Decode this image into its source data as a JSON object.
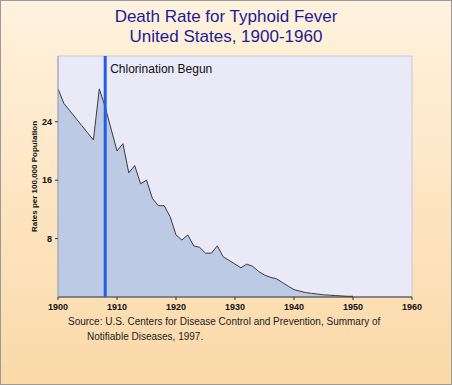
{
  "chart_data": {
    "type": "area",
    "title": "Death Rate for Typhoid Fever",
    "subtitle": "United States, 1900-1960",
    "y_label": "Rates per 100,000 Population",
    "source": [
      "Source: U.S. Centers for Disease Control and Prevention, Summary of",
      "Notifiable Diseases, 1997."
    ],
    "annotations": [
      {
        "x": 1908,
        "text": "Chlorination Begun"
      }
    ],
    "x": [
      1900,
      1901,
      1902,
      1903,
      1904,
      1905,
      1906,
      1907,
      1908,
      1909,
      1910,
      1911,
      1912,
      1913,
      1914,
      1915,
      1916,
      1917,
      1918,
      1919,
      1920,
      1921,
      1922,
      1923,
      1924,
      1925,
      1926,
      1927,
      1928,
      1929,
      1930,
      1931,
      1932,
      1933,
      1934,
      1935,
      1936,
      1937,
      1938,
      1939,
      1940,
      1941,
      1942,
      1943,
      1944,
      1945,
      1946,
      1947,
      1948,
      1949,
      1950
    ],
    "values": [
      28.5,
      26.5,
      25.5,
      24.5,
      23.5,
      22.5,
      21.5,
      28.5,
      26,
      23,
      20,
      21,
      17,
      18,
      15.5,
      16,
      13.5,
      12.5,
      12.5,
      11,
      8.5,
      7.8,
      8.5,
      7,
      6.8,
      6,
      6,
      7,
      5.5,
      5,
      4.5,
      4,
      4.5,
      4.2,
      3.5,
      3,
      2.7,
      2.5,
      2,
      1.5,
      1,
      0.8,
      0.6,
      0.5,
      0.4,
      0.3,
      0.25,
      0.2,
      0.15,
      0.1,
      0.1
    ],
    "color": "#bccbe3",
    "xlim": [
      1900,
      1960
    ],
    "xticks": [
      1900,
      1910,
      1920,
      1930,
      1940,
      1950,
      1960
    ],
    "ylim": [
      0,
      33
    ],
    "yticks": [
      8,
      16,
      24
    ],
    "grid": false
  }
}
